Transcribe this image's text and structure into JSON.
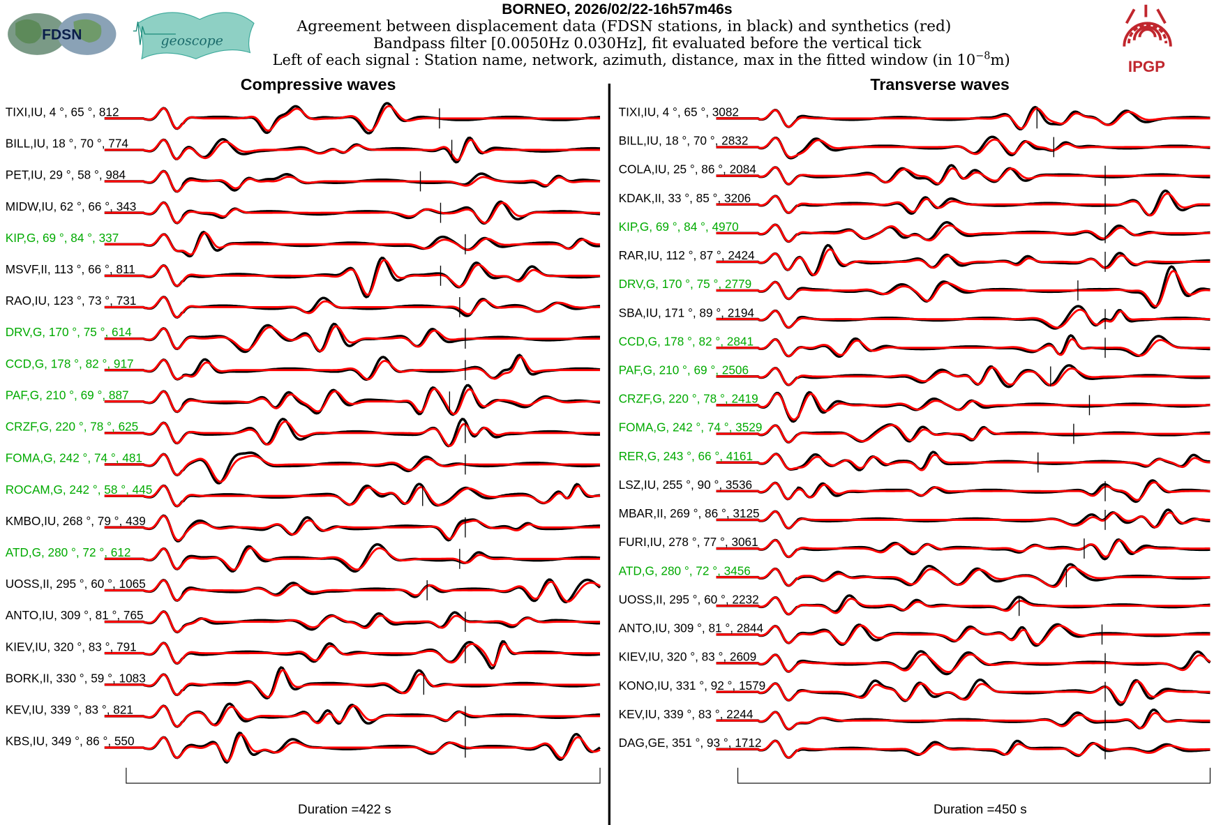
{
  "header": {
    "title": "BORNEO, 2026/02/22-16h57m46s",
    "line1": "Agreement between displacement data (FDSN stations, in black) and synthetics (red)",
    "line2": "Bandpass filter [0.0050Hz 0.030Hz], fit evaluated before the vertical tick",
    "line3_pre": "Left of each signal : Station name, network, azimuth, distance, max in the fitted window (in 10",
    "line3_sup": "−8",
    "line3_post": "m)"
  },
  "logos": {
    "fdsn": "FDSN",
    "geoscope": "geoscope",
    "ipgp": "IPGP"
  },
  "colors": {
    "data": "#000000",
    "synthetic": "#ff0000",
    "geoscope_station": "#00aa00",
    "ipgp": "#c0262d"
  },
  "chart_data": [
    {
      "type": "line",
      "title": "Compressive waves",
      "xlabel": "Duration =422 s",
      "duration_s": 422,
      "series_legend": [
        "data (black)",
        "synthetics (red)"
      ],
      "stations": [
        {
          "label": "TIXI,IU, 4 °, 65 °, 812",
          "green": false,
          "tick_s": 279
        },
        {
          "label": "BILL,IU, 18 °, 70 °, 774",
          "green": false,
          "tick_s": 290
        },
        {
          "label": "PET,IU, 29 °, 58 °, 984",
          "green": false,
          "tick_s": 262
        },
        {
          "label": "MIDW,IU, 62 °, 66 °, 343",
          "green": false,
          "tick_s": 280
        },
        {
          "label": "KIP,G, 69 °, 84 °, 337",
          "green": true,
          "tick_s": 302
        },
        {
          "label": "MSVF,II, 113 °, 66 °, 811",
          "green": false,
          "tick_s": 280
        },
        {
          "label": "RAO,IU, 123 °, 73 °, 731",
          "green": false,
          "tick_s": 297
        },
        {
          "label": "DRV,G, 170 °, 75 °, 614",
          "green": true,
          "tick_s": 302
        },
        {
          "label": "CCD,G, 178 °, 82 °, 917",
          "green": true,
          "tick_s": 302
        },
        {
          "label": "PAF,G, 210 °, 69 °, 887",
          "green": true,
          "tick_s": 288
        },
        {
          "label": "CRZF,G, 220 °, 78 °, 625",
          "green": true,
          "tick_s": 302
        },
        {
          "label": "FOMA,G, 242 °, 74 °, 481",
          "green": true,
          "tick_s": 302
        },
        {
          "label": "ROCAM,G, 242 °, 58 °, 445",
          "green": true,
          "tick_s": 264
        },
        {
          "label": "KMBO,IU, 268 °, 79 °, 439",
          "green": false,
          "tick_s": 302
        },
        {
          "label": "ATD,G, 280 °, 72 °, 612",
          "green": true,
          "tick_s": 297
        },
        {
          "label": "UOSS,II, 295 °, 60 °, 1065",
          "green": false,
          "tick_s": 268
        },
        {
          "label": "ANTO,IU, 309 °, 81 °, 765",
          "green": false,
          "tick_s": 302
        },
        {
          "label": "KIEV,IU, 320 °, 83 °, 791",
          "green": false,
          "tick_s": 302
        },
        {
          "label": "BORK,II, 330 °, 59 °, 1083",
          "green": false,
          "tick_s": 265
        },
        {
          "label": "KEV,IU, 339 °, 83 °, 821",
          "green": false,
          "tick_s": 302
        },
        {
          "label": "KBS,IU, 349 °, 86 °, 550",
          "green": false,
          "tick_s": 302
        }
      ]
    },
    {
      "type": "line",
      "title": "Transverse waves",
      "xlabel": "Duration =450 s",
      "duration_s": 450,
      "series_legend": [
        "data (black)",
        "synthetics (red)"
      ],
      "stations": [
        {
          "label": "TIXI,IU, 4 °, 65 °, 3082",
          "green": false,
          "tick_s": 285
        },
        {
          "label": "BILL,IU, 18 °, 70 °, 2832",
          "green": false,
          "tick_s": 301
        },
        {
          "label": "COLA,IU, 25 °, 86 °, 2084",
          "green": false,
          "tick_s": 350
        },
        {
          "label": "KDAK,II, 33 °, 85 °, 3206",
          "green": false,
          "tick_s": 350
        },
        {
          "label": "KIP,G, 69 °, 84 °, 4970",
          "green": true,
          "tick_s": 350
        },
        {
          "label": "RAR,IU, 112 °, 87 °, 2424",
          "green": false,
          "tick_s": 350
        },
        {
          "label": "DRV,G, 170 °, 75 °, 2779",
          "green": true,
          "tick_s": 324
        },
        {
          "label": "SBA,IU, 171 °, 89 °, 2194",
          "green": false,
          "tick_s": 350
        },
        {
          "label": "CCD,G, 178 °, 82 °, 2841",
          "green": true,
          "tick_s": 350
        },
        {
          "label": "PAF,G, 210 °, 69 °, 2506",
          "green": true,
          "tick_s": 298
        },
        {
          "label": "CRZF,G, 220 °, 78 °, 2419",
          "green": true,
          "tick_s": 335
        },
        {
          "label": "FOMA,G, 242 °, 74 °, 3529",
          "green": true,
          "tick_s": 320
        },
        {
          "label": "RER,G, 243 °, 66 °, 4161",
          "green": true,
          "tick_s": 286
        },
        {
          "label": "LSZ,IU, 255 °, 90 °, 3536",
          "green": false,
          "tick_s": 350
        },
        {
          "label": "MBAR,II, 269 °, 86 °, 3125",
          "green": false,
          "tick_s": 350
        },
        {
          "label": "FURI,IU, 278 °, 77 °, 3061",
          "green": false,
          "tick_s": 330
        },
        {
          "label": "ATD,G, 280 °, 72 °, 3456",
          "green": true,
          "tick_s": 313
        },
        {
          "label": "UOSS,II, 295 °, 60 °, 2232",
          "green": false,
          "tick_s": 268
        },
        {
          "label": "ANTO,IU, 309 °, 81 °, 2844",
          "green": false,
          "tick_s": 347
        },
        {
          "label": "KIEV,IU, 320 °, 83 °, 2609",
          "green": false,
          "tick_s": 350
        },
        {
          "label": "KONO,IU, 331 °, 92 °, 1579",
          "green": false,
          "tick_s": 350
        },
        {
          "label": "KEV,IU, 339 °, 83 °, 2244",
          "green": false,
          "tick_s": 350
        },
        {
          "label": "DAG,GE, 351 °, 93 °, 1712",
          "green": false,
          "tick_s": 350
        }
      ]
    }
  ]
}
